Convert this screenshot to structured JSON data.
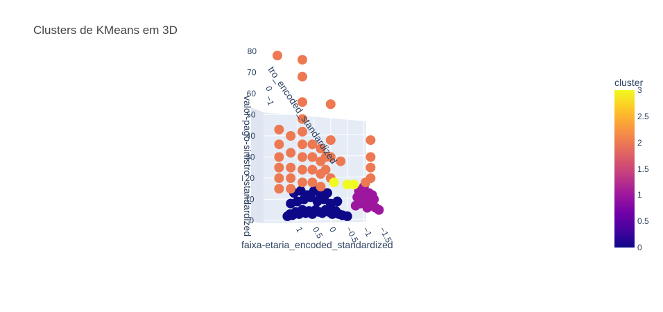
{
  "title": "Clusters de KMeans em 3D",
  "chart_data": {
    "type": "scatter",
    "mode": "3d",
    "title": "Clusters de KMeans em 3D",
    "axes": {
      "x": {
        "label": "faixa-etaria_encoded_standardized",
        "ticks": [
          "1",
          "0.5",
          "0",
          "−0.5",
          "−1",
          "−1.5"
        ]
      },
      "y": {
        "label": "valor-pago-sinistro_standardized",
        "ticks": [
          "0",
          "10",
          "20",
          "30",
          "40",
          "50",
          "60",
          "70",
          "80"
        ]
      },
      "z": {
        "label": "tro_encoded_standardized",
        "ticks": [
          "0",
          "−1"
        ]
      }
    },
    "colorbar": {
      "title": "cluster",
      "range": [
        0,
        3
      ],
      "ticks": [
        "0",
        "0.5",
        "1",
        "1.5",
        "2",
        "2.5",
        "3"
      ],
      "colorscale": [
        "#0d0887",
        "#46039f",
        "#7201a8",
        "#9c179e",
        "#bd3786",
        "#d8576b",
        "#ed7953",
        "#fb9f3a",
        "#fdca26",
        "#f0f921"
      ]
    },
    "series": [
      {
        "cluster": 0,
        "color": "#0d0887",
        "points": [
          [
            1.3,
            2
          ],
          [
            1.22,
            3
          ],
          [
            1.15,
            2.5
          ],
          [
            1.05,
            4
          ],
          [
            0.95,
            3
          ],
          [
            0.85,
            5
          ],
          [
            0.75,
            3.5
          ],
          [
            0.65,
            4.5
          ],
          [
            0.55,
            3
          ],
          [
            0.45,
            5
          ],
          [
            0.35,
            4
          ],
          [
            0.25,
            3.5
          ],
          [
            0.15,
            5
          ],
          [
            0.05,
            4
          ],
          [
            -0.05,
            3
          ],
          [
            -0.15,
            4.5
          ],
          [
            -0.25,
            3
          ],
          [
            -0.35,
            2.5
          ],
          [
            -0.5,
            2
          ],
          [
            1.2,
            8
          ],
          [
            1.0,
            9
          ],
          [
            0.8,
            10
          ],
          [
            0.6,
            11
          ],
          [
            0.4,
            9
          ],
          [
            0.2,
            10
          ],
          [
            0.0,
            8
          ],
          [
            -0.2,
            9
          ],
          [
            1.1,
            13
          ],
          [
            0.9,
            14
          ],
          [
            0.7,
            12
          ],
          [
            0.5,
            14
          ],
          [
            0.3,
            12
          ],
          [
            0.1,
            13
          ]
        ]
      },
      {
        "cluster": 1,
        "color": "#9c179e",
        "points": [
          [
            -0.85,
            14
          ],
          [
            -0.95,
            12
          ],
          [
            -1.05,
            10
          ],
          [
            -1.15,
            9
          ],
          [
            -1.25,
            7
          ],
          [
            -1.35,
            6
          ],
          [
            -1.45,
            5
          ],
          [
            -1.0,
            16
          ],
          [
            -1.15,
            13
          ],
          [
            -1.3,
            10
          ],
          [
            -0.9,
            8
          ],
          [
            -1.1,
            6
          ],
          [
            -1.25,
            12
          ],
          [
            -0.8,
            11
          ],
          [
            -0.75,
            7
          ]
        ]
      },
      {
        "cluster": 2,
        "color": "#ed7953",
        "points": [
          [
            1.6,
            78
          ],
          [
            1.55,
            43
          ],
          [
            1.55,
            36
          ],
          [
            1.55,
            30
          ],
          [
            1.55,
            25
          ],
          [
            1.55,
            20
          ],
          [
            1.55,
            15
          ],
          [
            1.2,
            40
          ],
          [
            1.2,
            32
          ],
          [
            1.2,
            25
          ],
          [
            1.2,
            20
          ],
          [
            1.2,
            15
          ],
          [
            0.85,
            76
          ],
          [
            0.85,
            68
          ],
          [
            0.85,
            56
          ],
          [
            0.85,
            48
          ],
          [
            0.85,
            42
          ],
          [
            0.85,
            36
          ],
          [
            0.85,
            30
          ],
          [
            0.85,
            24
          ],
          [
            0.85,
            18
          ],
          [
            0.55,
            36
          ],
          [
            0.55,
            30
          ],
          [
            0.55,
            24
          ],
          [
            0.55,
            18
          ],
          [
            0.3,
            34
          ],
          [
            0.3,
            28
          ],
          [
            0.3,
            22
          ],
          [
            0.3,
            16
          ],
          [
            0.15,
            30
          ],
          [
            0.15,
            24
          ],
          [
            0.0,
            55
          ],
          [
            0.0,
            38
          ],
          [
            0.0,
            30
          ],
          [
            0.0,
            20
          ],
          [
            -0.3,
            28
          ],
          [
            -1.2,
            38
          ],
          [
            -1.2,
            30
          ],
          [
            -1.2,
            25
          ],
          [
            -1.2,
            20
          ],
          [
            -1.05,
            18
          ]
        ]
      },
      {
        "cluster": 3,
        "color": "#f0f921",
        "points": [
          [
            -0.1,
            18
          ],
          [
            -0.5,
            17
          ],
          [
            -0.7,
            17
          ]
        ]
      }
    ]
  }
}
